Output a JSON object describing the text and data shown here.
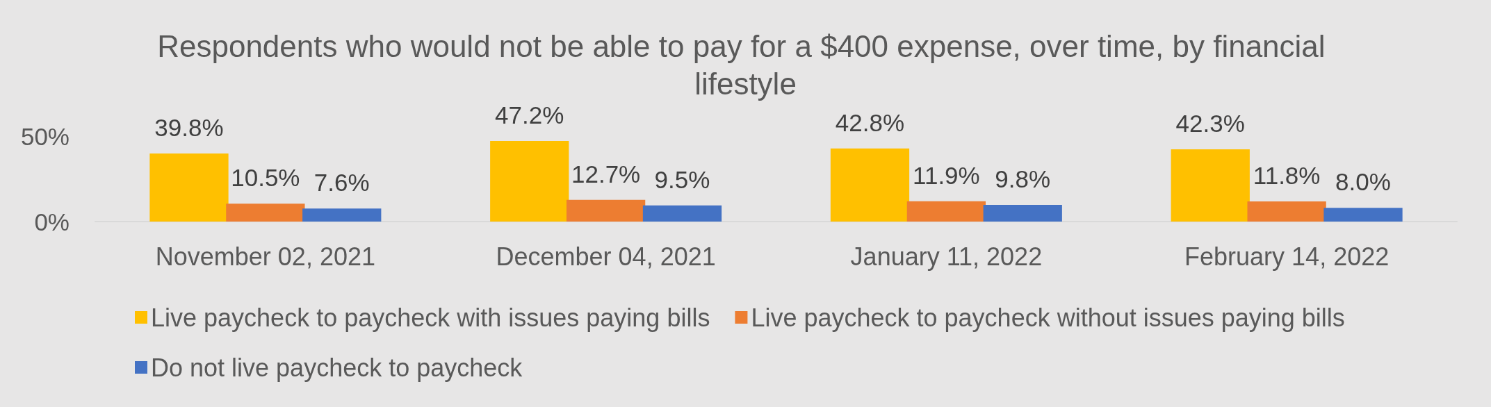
{
  "chart_data": {
    "type": "bar",
    "title": "Respondents who would not be able to pay for a $400 expense, over time, by financial lifestyle",
    "categories": [
      "November 02, 2021",
      "December 04, 2021",
      "January 11, 2022",
      "February 14, 2022"
    ],
    "series": [
      {
        "name": "Live paycheck to paycheck with issues paying bills",
        "color": "#ffc000",
        "values": [
          39.8,
          47.2,
          42.8,
          42.3
        ],
        "value_labels": [
          "39.8%",
          "47.2%",
          "42.8%",
          "42.3%"
        ]
      },
      {
        "name": "Live paycheck to paycheck without issues paying bills",
        "color": "#ed7d31",
        "values": [
          10.5,
          12.7,
          11.9,
          11.8
        ],
        "value_labels": [
          "10.5%",
          "12.7%",
          "11.9%",
          "11.8%"
        ]
      },
      {
        "name": "Do not live paycheck to paycheck",
        "color": "#4472c4",
        "values": [
          7.6,
          9.5,
          9.8,
          8.0
        ],
        "value_labels": [
          "7.6%",
          "9.5%",
          "9.8%",
          "8.0%"
        ]
      }
    ],
    "ylim": [
      0,
      50
    ],
    "yticks": [
      {
        "value": 0,
        "label": "0%"
      },
      {
        "value": 50,
        "label": "50%"
      }
    ],
    "grid": false,
    "legend": "bottom"
  }
}
